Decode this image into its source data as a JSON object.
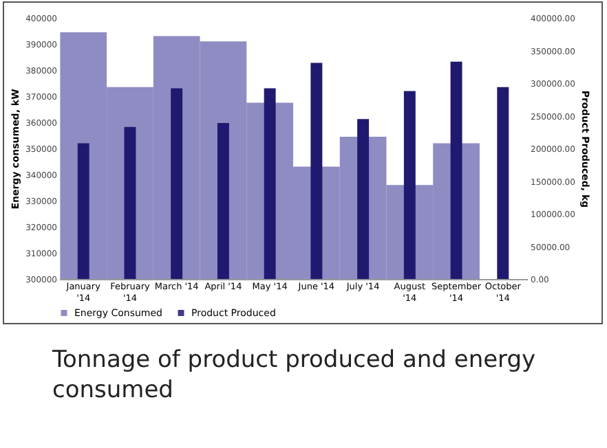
{
  "chart_data": {
    "type": "bar",
    "categories": [
      "January '14",
      "February '14",
      "March '14",
      "April '14",
      "May '14",
      "June '14",
      "July '14",
      "August '14",
      "September '14",
      "October '14"
    ],
    "series": [
      {
        "name": "Energy Consumed",
        "color": "#7b78b8",
        "values": [
          394500,
          373500,
          393000,
          391000,
          367500,
          343000,
          354500,
          336000,
          352000,
          null
        ]
      },
      {
        "name": "Product Produced",
        "color": "#1f1a70",
        "axis": "y2",
        "values": [
          208000,
          233000,
          292000,
          239000,
          292000,
          331000,
          245000,
          288000,
          333000,
          294000
        ]
      }
    ],
    "ylabel": "Energy consumed, kW",
    "y2label": "Product Produced, kg",
    "ylim": [
      300000,
      400000
    ],
    "yticks": [
      300000,
      310000,
      320000,
      330000,
      340000,
      350000,
      360000,
      370000,
      380000,
      390000,
      400000
    ],
    "y2lim": [
      0,
      400000
    ],
    "y2ticks": [
      {
        "value": 0,
        "label": "0.00"
      },
      {
        "value": 50000,
        "label": "50000.00"
      },
      {
        "value": 100000,
        "label": "100000.00"
      },
      {
        "value": 150000,
        "label": "150000.00"
      },
      {
        "value": 200000,
        "label": "200000.00"
      },
      {
        "value": 250000,
        "label": "250000.00"
      },
      {
        "value": 300000,
        "label": "300000.00"
      },
      {
        "value": 350000,
        "label": "350000.00"
      },
      {
        "value": 400000,
        "label": "400000.00"
      }
    ],
    "grid": false,
    "legend": "bottom",
    "annotations": [
      "Tonnage of product produced and energy consumed"
    ]
  }
}
